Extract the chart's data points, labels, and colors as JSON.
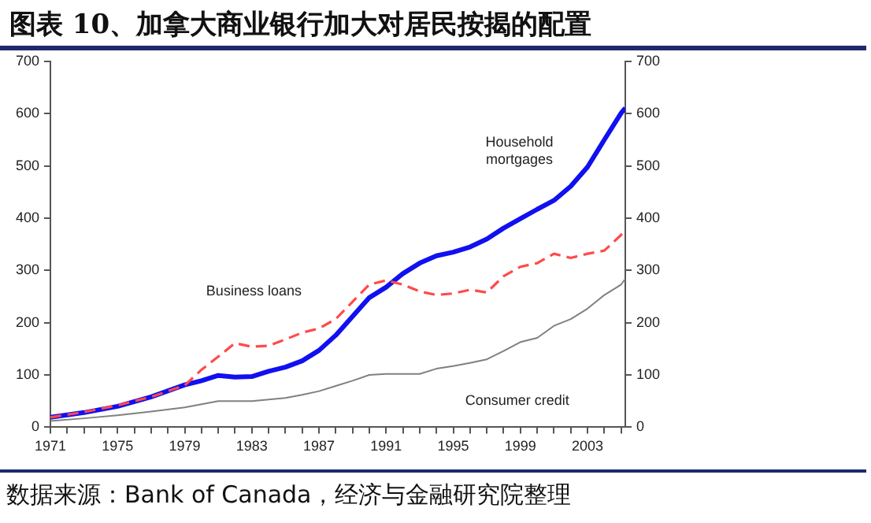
{
  "chart_data": {
    "type": "line",
    "title": "图表 10、加拿大商业银行加大对居民按揭的配置",
    "annotations": [
      "数据来源：Bank of Canada，经济与金融研究院整理"
    ],
    "x": [
      1971,
      1973,
      1975,
      1977,
      1979,
      1980,
      1981,
      1982,
      1983,
      1984,
      1985,
      1986,
      1987,
      1988,
      1989,
      1990,
      1991,
      1992,
      1993,
      1994,
      1995,
      1996,
      1997,
      1998,
      1999,
      2000,
      2001,
      2002,
      2003,
      2004,
      2005,
      2005.25
    ],
    "series": [
      {
        "name": "Household mortgages",
        "color": "#1010f0",
        "line_style": "solid",
        "values": [
          19,
          28,
          40,
          58,
          81,
          89,
          99,
          96,
          97,
          107,
          115,
          127,
          147,
          176,
          212,
          248,
          268,
          294,
          314,
          328,
          335,
          345,
          360,
          381,
          399,
          417,
          434,
          461,
          498,
          550,
          601,
          611
        ]
      },
      {
        "name": "Business loans",
        "color": "#ff4a4a",
        "line_style": "dashed",
        "values": [
          19,
          29,
          42,
          58,
          80,
          110,
          135,
          161,
          154,
          156,
          168,
          181,
          189,
          207,
          240,
          273,
          281,
          273,
          260,
          253,
          256,
          263,
          258,
          289,
          307,
          314,
          332,
          324,
          332,
          338,
          368,
          378
        ]
      },
      {
        "name": "Consumer credit",
        "color": "#808080",
        "line_style": "solid",
        "values": [
          12,
          17,
          23,
          30,
          38,
          44,
          50,
          50,
          50,
          53,
          56,
          62,
          69,
          79,
          89,
          100,
          102,
          102,
          102,
          112,
          117,
          123,
          130,
          146,
          163,
          171,
          194,
          207,
          227,
          253,
          273,
          284
        ]
      }
    ],
    "xlim": [
      1971,
      2005.25
    ],
    "xticks": [
      1971,
      {
        "value": 1972,
        "label": null
      },
      {
        "value": 1973,
        "label": null
      },
      {
        "value": 1974,
        "label": null
      },
      1975,
      {
        "value": 1976,
        "label": null
      },
      {
        "value": 1977,
        "label": null
      },
      {
        "value": 1978,
        "label": null
      },
      1979,
      {
        "value": 1980,
        "label": null
      },
      {
        "value": 1981,
        "label": null
      },
      {
        "value": 1982,
        "label": null
      },
      1983,
      {
        "value": 1984,
        "label": null
      },
      {
        "value": 1985,
        "label": null
      },
      {
        "value": 1986,
        "label": null
      },
      1987,
      {
        "value": 1988,
        "label": null
      },
      {
        "value": 1989,
        "label": null
      },
      {
        "value": 1990,
        "label": null
      },
      1991,
      {
        "value": 1992,
        "label": null
      },
      {
        "value": 1993,
        "label": null
      },
      {
        "value": 1994,
        "label": null
      },
      1995,
      {
        "value": 1996,
        "label": null
      },
      {
        "value": 1997,
        "label": null
      },
      {
        "value": 1998,
        "label": null
      },
      1999,
      {
        "value": 2000,
        "label": null
      },
      {
        "value": 2001,
        "label": null
      },
      {
        "value": 2002,
        "label": null
      },
      2003,
      {
        "value": 2004,
        "label": null
      },
      {
        "value": 2005,
        "label": null
      }
    ],
    "ylim": [
      0,
      700
    ],
    "yticks": [
      0,
      100,
      200,
      300,
      400,
      500,
      600,
      700
    ],
    "y2lim": [
      0,
      700
    ],
    "y2ticks": [
      0,
      100,
      200,
      300,
      400,
      500,
      600,
      700
    ],
    "grid": false,
    "legend": false,
    "marker": "none"
  }
}
